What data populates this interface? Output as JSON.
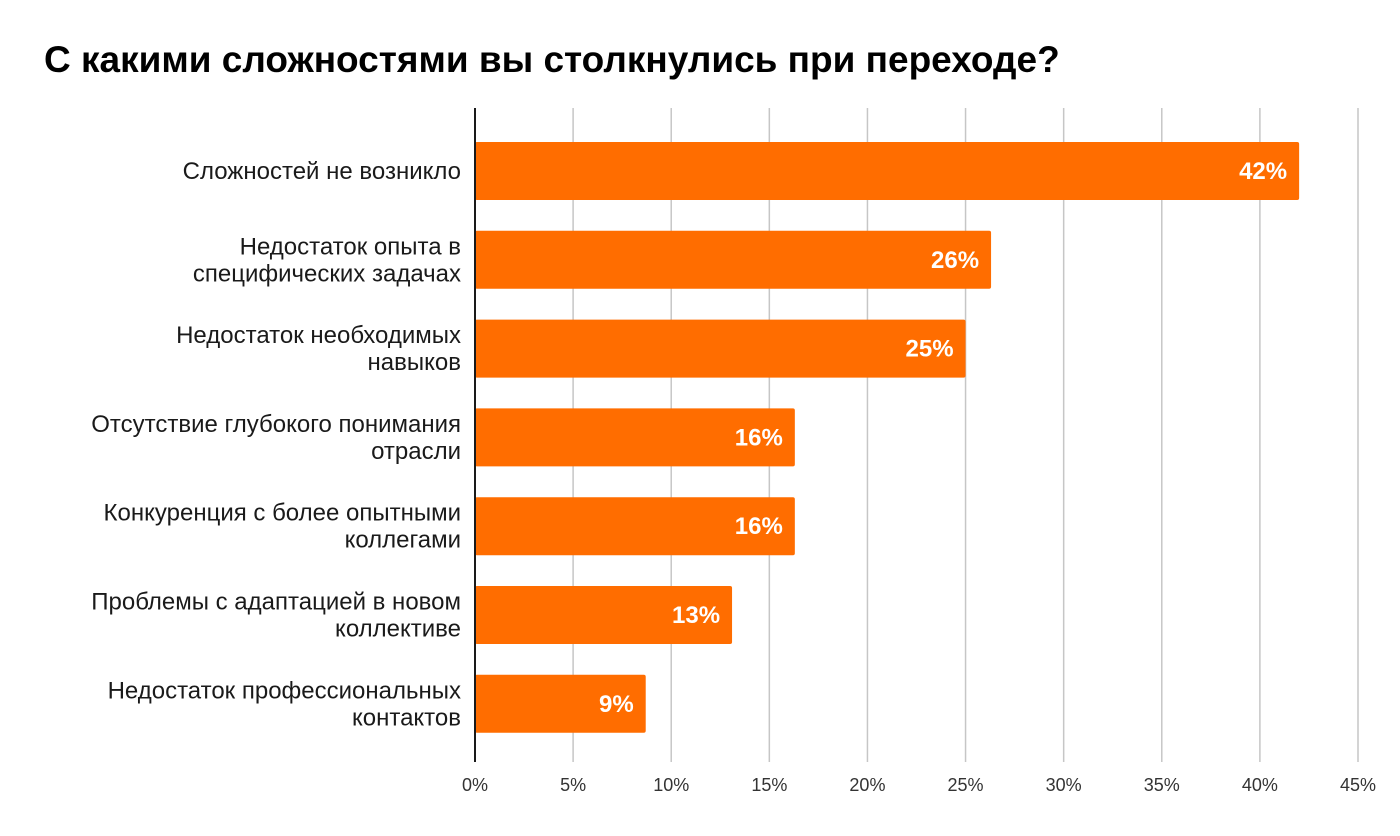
{
  "colors": {
    "bar": "#FF6D00",
    "grid": "#C6C6C6",
    "axis": "#1A1A1A",
    "data_label": "#FFFFFF"
  },
  "chart_data": {
    "type": "bar",
    "orientation": "horizontal",
    "title": "С какими сложностями вы столкнулись при переходе?",
    "xlabel": "",
    "ylabel": "",
    "categories": [
      [
        "Сложностей не возникло"
      ],
      [
        "Недостаток опыта в",
        "специфических задачах"
      ],
      [
        "Недостаток необходимых",
        "навыков"
      ],
      [
        "Отсутствие глубокого понимания",
        "отрасли"
      ],
      [
        "Конкуренция с более опытными",
        "коллегами"
      ],
      [
        "Проблемы с адаптацией в новом",
        "коллективе"
      ],
      [
        "Недостаток профессиональных",
        "контактов"
      ]
    ],
    "values": [
      42,
      26.3,
      25,
      16.3,
      16.3,
      13.1,
      8.7
    ],
    "data_labels": [
      "42%",
      "26%",
      "25%",
      "16%",
      "16%",
      "13%",
      "9%"
    ],
    "xlim": [
      0,
      45
    ],
    "x_ticks": [
      0,
      5,
      10,
      15,
      20,
      25,
      30,
      35,
      40,
      45
    ],
    "x_tick_labels": [
      "0%",
      "5%",
      "10%",
      "15%",
      "20%",
      "25%",
      "30%",
      "35%",
      "40%",
      "45%"
    ],
    "grid": "vertical",
    "legend": "none"
  }
}
